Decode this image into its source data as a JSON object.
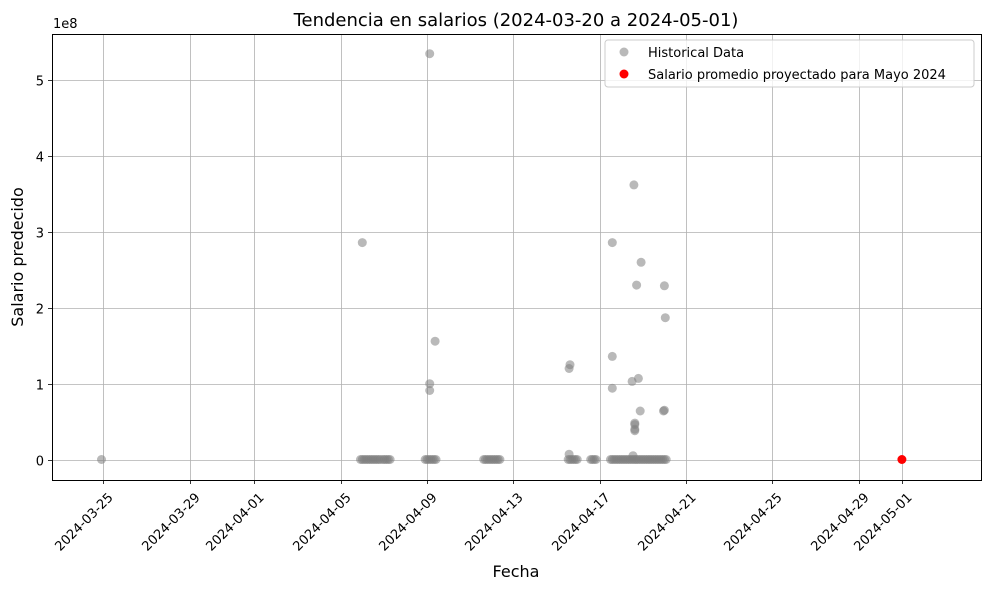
{
  "chart_data": {
    "type": "scatter",
    "title": "Tendencia en salarios (2024-03-20 a 2024-05-01)",
    "xlabel": "Fecha",
    "ylabel": "Salario predecido",
    "y_offset_text": "1e8",
    "xlim": [
      "2024-03-22T15:00",
      "2024-05-04T16:00"
    ],
    "ylim": [
      -0.27,
      5.61
    ],
    "y_unit_note": "y values in units of 1e8",
    "x_ticks": [
      "2024-03-25",
      "2024-03-29",
      "2024-04-01",
      "2024-04-05",
      "2024-04-09",
      "2024-04-13",
      "2024-04-17",
      "2024-04-21",
      "2024-04-25",
      "2024-04-29",
      "2024-05-01"
    ],
    "y_ticks": [
      0,
      1,
      2,
      3,
      4,
      5
    ],
    "y_tick_labels": [
      "0",
      "1",
      "2",
      "3",
      "4",
      "5"
    ],
    "grid": true,
    "legend_position": "top-right",
    "series": [
      {
        "name": "Historical Data",
        "color": "#808080",
        "points": [
          [
            "2024-03-24T22:00",
            0
          ],
          [
            "2024-04-05T22:00",
            0
          ],
          [
            "2024-04-06T00:00",
            0
          ],
          [
            "2024-04-06T02:00",
            0
          ],
          [
            "2024-04-06T04:00",
            0
          ],
          [
            "2024-04-06T06:00",
            0
          ],
          [
            "2024-04-06T08:00",
            0
          ],
          [
            "2024-04-06T10:00",
            0
          ],
          [
            "2024-04-06T12:00",
            0
          ],
          [
            "2024-04-06T00:00",
            2.86
          ],
          [
            "2024-04-06T14:00",
            0
          ],
          [
            "2024-04-06T16:00",
            0
          ],
          [
            "2024-04-06T18:00",
            0
          ],
          [
            "2024-04-06T20:00",
            0
          ],
          [
            "2024-04-06T23:00",
            0
          ],
          [
            "2024-04-07T01:00",
            0
          ],
          [
            "2024-04-07T03:00",
            0
          ],
          [
            "2024-04-07T05:00",
            0
          ],
          [
            "2024-04-07T07:00",
            0
          ],
          [
            "2024-04-08T22:00",
            0
          ],
          [
            "2024-04-09T00:00",
            0
          ],
          [
            "2024-04-09T02:00",
            0
          ],
          [
            "2024-04-09T04:00",
            0
          ],
          [
            "2024-04-09T06:00",
            0
          ],
          [
            "2024-04-09T08:00",
            0
          ],
          [
            "2024-04-09T10:00",
            0
          ],
          [
            "2024-04-09T03:00",
            5.35
          ],
          [
            "2024-04-09T03:00",
            1.0
          ],
          [
            "2024-04-09T03:00",
            0.91
          ],
          [
            "2024-04-09T09:00",
            1.56
          ],
          [
            "2024-04-11T15:00",
            0
          ],
          [
            "2024-04-11T17:00",
            0
          ],
          [
            "2024-04-11T19:00",
            0
          ],
          [
            "2024-04-11T21:00",
            0
          ],
          [
            "2024-04-11T23:00",
            0
          ],
          [
            "2024-04-12T01:00",
            0
          ],
          [
            "2024-04-12T03:00",
            0
          ],
          [
            "2024-04-12T05:00",
            0
          ],
          [
            "2024-04-12T07:00",
            0
          ],
          [
            "2024-04-12T09:00",
            0
          ],
          [
            "2024-04-15T13:00",
            0
          ],
          [
            "2024-04-15T15:00",
            0
          ],
          [
            "2024-04-15T17:00",
            0
          ],
          [
            "2024-04-15T19:00",
            0
          ],
          [
            "2024-04-15T21:00",
            0
          ],
          [
            "2024-04-15T23:00",
            0
          ],
          [
            "2024-04-15T14:00",
            0.07
          ],
          [
            "2024-04-15T14:00",
            1.2
          ],
          [
            "2024-04-15T15:00",
            1.25
          ],
          [
            "2024-04-16T14:00",
            0
          ],
          [
            "2024-04-16T16:00",
            0
          ],
          [
            "2024-04-16T18:00",
            0
          ],
          [
            "2024-04-16T20:00",
            0
          ],
          [
            "2024-04-17T12:00",
            0
          ],
          [
            "2024-04-17T14:00",
            0
          ],
          [
            "2024-04-17T16:00",
            0
          ],
          [
            "2024-04-17T18:00",
            0
          ],
          [
            "2024-04-17T20:00",
            0
          ],
          [
            "2024-04-17T22:00",
            0
          ],
          [
            "2024-04-18T00:00",
            0
          ],
          [
            "2024-04-18T02:00",
            0
          ],
          [
            "2024-04-18T04:00",
            0
          ],
          [
            "2024-04-18T06:00",
            0
          ],
          [
            "2024-04-18T08:00",
            0
          ],
          [
            "2024-04-18T10:00",
            0
          ],
          [
            "2024-04-18T12:00",
            0
          ],
          [
            "2024-04-18T14:00",
            0
          ],
          [
            "2024-04-18T16:00",
            0
          ],
          [
            "2024-04-18T18:00",
            0
          ],
          [
            "2024-04-18T20:00",
            0
          ],
          [
            "2024-04-18T22:00",
            0
          ],
          [
            "2024-04-19T00:00",
            0
          ],
          [
            "2024-04-19T02:00",
            0
          ],
          [
            "2024-04-19T04:00",
            0
          ],
          [
            "2024-04-19T06:00",
            0
          ],
          [
            "2024-04-19T08:00",
            0
          ],
          [
            "2024-04-19T10:00",
            0
          ],
          [
            "2024-04-19T12:00",
            0
          ],
          [
            "2024-04-19T14:00",
            0
          ],
          [
            "2024-04-19T16:00",
            0
          ],
          [
            "2024-04-19T18:00",
            0
          ],
          [
            "2024-04-19T20:00",
            0
          ],
          [
            "2024-04-19T22:00",
            0
          ],
          [
            "2024-04-20T00:00",
            0
          ],
          [
            "2024-04-20T02:00",
            0
          ],
          [
            "2024-04-18T13:00",
            0.05
          ],
          [
            "2024-04-17T14:00",
            2.86
          ],
          [
            "2024-04-17T14:00",
            1.36
          ],
          [
            "2024-04-17T14:00",
            0.94
          ],
          [
            "2024-04-18T12:00",
            1.03
          ],
          [
            "2024-04-18T14:00",
            3.62
          ],
          [
            "2024-04-18T15:00",
            0.48
          ],
          [
            "2024-04-18T15:00",
            0.46
          ],
          [
            "2024-04-18T15:00",
            0.4
          ],
          [
            "2024-04-18T15:00",
            0.38
          ],
          [
            "2024-04-18T17:00",
            2.3
          ],
          [
            "2024-04-18T19:00",
            1.07
          ],
          [
            "2024-04-18T21:00",
            0.64
          ],
          [
            "2024-04-18T22:00",
            2.6
          ],
          [
            "2024-04-20T00:00",
            2.29
          ],
          [
            "2024-04-20T01:00",
            1.87
          ],
          [
            "2024-04-19T23:00",
            0.64
          ],
          [
            "2024-04-20T00:00",
            0.65
          ]
        ]
      },
      {
        "name": "Salario promedio proyectado para Mayo 2024",
        "color": "#ff0000",
        "points": [
          [
            "2024-05-01T00:00",
            0
          ]
        ]
      }
    ]
  }
}
